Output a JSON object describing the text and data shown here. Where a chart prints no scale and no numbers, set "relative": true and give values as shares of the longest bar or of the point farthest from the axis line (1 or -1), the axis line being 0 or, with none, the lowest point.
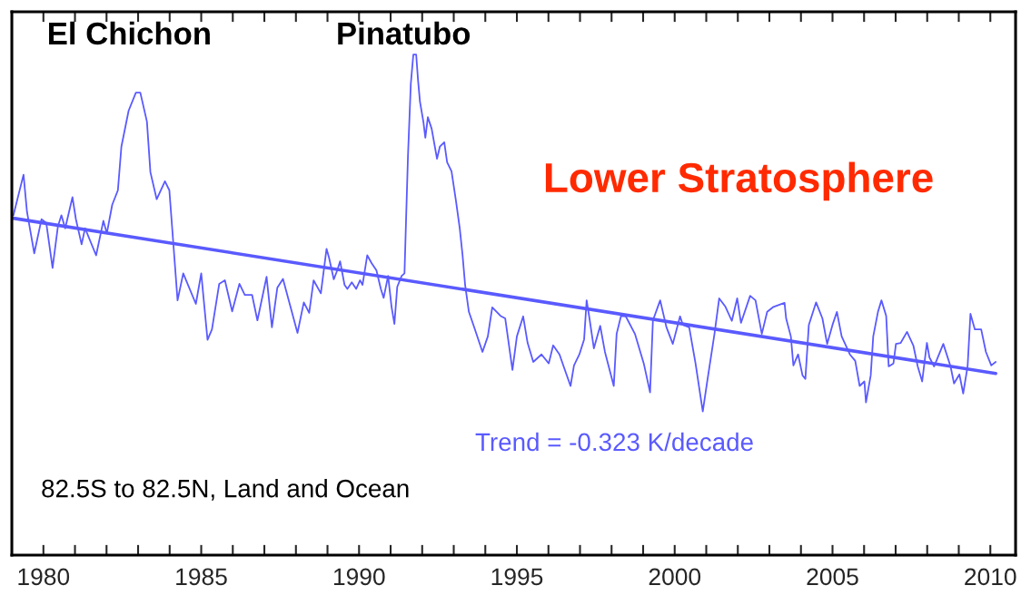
{
  "chart_data": {
    "type": "line",
    "title": "Lower Stratosphere",
    "relative": true,
    "tick_labels": "x",
    "line_style": "solid",
    "xlim": [
      1979,
      2010.8
    ],
    "xticks": [
      {
        "value": 1980,
        "label": "1980"
      },
      {
        "value": 1981,
        "label": null
      },
      {
        "value": 1982,
        "label": null
      },
      {
        "value": 1983,
        "label": null
      },
      {
        "value": 1984,
        "label": null
      },
      {
        "value": 1985,
        "label": "1985"
      },
      {
        "value": 1986,
        "label": null
      },
      {
        "value": 1987,
        "label": null
      },
      {
        "value": 1988,
        "label": null
      },
      {
        "value": 1989,
        "label": null
      },
      {
        "value": 1990,
        "label": "1990"
      },
      {
        "value": 1991,
        "label": null
      },
      {
        "value": 1992,
        "label": null
      },
      {
        "value": 1993,
        "label": null
      },
      {
        "value": 1994,
        "label": null
      },
      {
        "value": 1995,
        "label": "1995"
      },
      {
        "value": 1996,
        "label": null
      },
      {
        "value": 1997,
        "label": null
      },
      {
        "value": 1998,
        "label": null
      },
      {
        "value": 1999,
        "label": null
      },
      {
        "value": 2000,
        "label": "2000"
      },
      {
        "value": 2001,
        "label": null
      },
      {
        "value": 2002,
        "label": null
      },
      {
        "value": 2003,
        "label": null
      },
      {
        "value": 2004,
        "label": null
      },
      {
        "value": 2005,
        "label": "2005"
      },
      {
        "value": 2006,
        "label": null
      },
      {
        "value": 2007,
        "label": null
      },
      {
        "value": 2008,
        "label": null
      },
      {
        "value": 2009,
        "label": null
      },
      {
        "value": 2010,
        "label": "2010"
      }
    ],
    "series": [
      {
        "color": "#5a5aff",
        "x": [
          1979.05,
          1979.37,
          1979.48,
          1979.71,
          1979.94,
          1980.09,
          1980.29,
          1980.46,
          1980.57,
          1980.69,
          1980.92,
          1981.03,
          1981.21,
          1981.32,
          1981.67,
          1981.9,
          1982.01,
          1982.18,
          1982.36,
          1982.47,
          1982.7,
          1982.93,
          1983.07,
          1983.28,
          1983.39,
          1983.59,
          1983.85,
          1983.99,
          1984.11,
          1984.25,
          1984.43,
          1984.83,
          1985.0,
          1985.2,
          1985.34,
          1985.57,
          1985.75,
          1985.98,
          1986.21,
          1986.38,
          1986.61,
          1986.78,
          1987.07,
          1987.24,
          1987.41,
          1987.59,
          1987.82,
          1988.05,
          1988.25,
          1988.42,
          1988.56,
          1988.79,
          1988.97,
          1989.05,
          1989.2,
          1989.31,
          1989.4,
          1989.54,
          1989.63,
          1989.77,
          1989.91,
          1990.03,
          1990.11,
          1990.26,
          1990.4,
          1990.55,
          1990.69,
          1990.78,
          1990.92,
          1991.03,
          1991.12,
          1991.21,
          1991.35,
          1991.44,
          1991.49,
          1991.55,
          1991.64,
          1991.72,
          1991.81,
          1991.87,
          1991.93,
          1992.04,
          1992.1,
          1992.18,
          1992.3,
          1992.47,
          1992.56,
          1992.7,
          1992.79,
          1992.93,
          1993.07,
          1993.19,
          1993.28,
          1993.36,
          1993.48,
          1993.65,
          1993.91,
          1994.08,
          1994.22,
          1994.48,
          1994.63,
          1994.86,
          1995.0,
          1995.2,
          1995.34,
          1995.52,
          1995.78,
          1996.01,
          1996.15,
          1996.35,
          1996.52,
          1996.7,
          1996.81,
          1996.98,
          1997.13,
          1997.21,
          1997.3,
          1997.44,
          1997.64,
          1997.79,
          1998.07,
          1998.16,
          1998.3,
          1998.45,
          1998.74,
          1999.02,
          1999.22,
          1999.31,
          1999.54,
          1999.74,
          1999.94,
          2000.17,
          2000.26,
          2000.46,
          2000.66,
          2000.89,
          2001.03,
          2001.26,
          2001.41,
          2001.61,
          2001.81,
          2001.98,
          2002.1,
          2002.39,
          2002.56,
          2002.76,
          2002.93,
          2003.13,
          2003.48,
          2003.53,
          2003.68,
          2003.76,
          2003.91,
          2004.05,
          2004.14,
          2004.25,
          2004.48,
          2004.68,
          2004.83,
          2005.0,
          2005.14,
          2005.29,
          2005.55,
          2005.72,
          2005.86,
          2006.01,
          2006.06,
          2006.21,
          2006.29,
          2006.44,
          2006.55,
          2006.7,
          2006.78,
          2006.93,
          2007.01,
          2007.16,
          2007.36,
          2007.56,
          2007.7,
          2007.84,
          2007.99,
          2008.07,
          2008.22,
          2008.51,
          2008.74,
          2008.85,
          2009.02,
          2009.14,
          2009.28,
          2009.37,
          2009.51,
          2009.71,
          2009.86,
          2010.03,
          2010.17
        ],
        "values": [
          0.679,
          0.76,
          0.686,
          0.603,
          0.671,
          0.664,
          0.574,
          0.657,
          0.679,
          0.653,
          0.715,
          0.671,
          0.621,
          0.653,
          0.599,
          0.668,
          0.643,
          0.7,
          0.729,
          0.816,
          0.888,
          0.924,
          0.924,
          0.866,
          0.765,
          0.711,
          0.747,
          0.729,
          0.628,
          0.509,
          0.563,
          0.502,
          0.563,
          0.43,
          0.451,
          0.542,
          0.549,
          0.487,
          0.542,
          0.52,
          0.52,
          0.469,
          0.556,
          0.455,
          0.534,
          0.552,
          0.498,
          0.444,
          0.505,
          0.484,
          0.549,
          0.523,
          0.612,
          0.594,
          0.551,
          0.569,
          0.587,
          0.54,
          0.532,
          0.545,
          0.532,
          0.549,
          0.54,
          0.599,
          0.583,
          0.569,
          0.532,
          0.514,
          0.558,
          0.496,
          0.462,
          0.536,
          0.558,
          0.563,
          0.671,
          0.798,
          0.942,
          1.0,
          1.0,
          0.948,
          0.906,
          0.865,
          0.834,
          0.875,
          0.852,
          0.792,
          0.816,
          0.825,
          0.785,
          0.767,
          0.708,
          0.653,
          0.599,
          0.54,
          0.486,
          0.455,
          0.406,
          0.437,
          0.495,
          0.478,
          0.473,
          0.37,
          0.437,
          0.477,
          0.424,
          0.386,
          0.401,
          0.383,
          0.419,
          0.401,
          0.37,
          0.338,
          0.379,
          0.401,
          0.431,
          0.509,
          0.473,
          0.413,
          0.458,
          0.406,
          0.338,
          0.442,
          0.478,
          0.477,
          0.442,
          0.383,
          0.325,
          0.469,
          0.509,
          0.455,
          0.422,
          0.477,
          0.46,
          0.455,
          0.383,
          0.287,
          0.347,
          0.442,
          0.513,
          0.496,
          0.468,
          0.513,
          0.464,
          0.518,
          0.509,
          0.442,
          0.486,
          0.496,
          0.504,
          0.473,
          0.437,
          0.379,
          0.401,
          0.359,
          0.352,
          0.46,
          0.505,
          0.473,
          0.422,
          0.46,
          0.486,
          0.437,
          0.401,
          0.388,
          0.338,
          0.347,
          0.305,
          0.359,
          0.437,
          0.486,
          0.509,
          0.478,
          0.377,
          0.383,
          0.422,
          0.424,
          0.446,
          0.419,
          0.377,
          0.347,
          0.424,
          0.395,
          0.377,
          0.422,
          0.377,
          0.343,
          0.361,
          0.323,
          0.377,
          0.482,
          0.451,
          0.451,
          0.406,
          0.379,
          0.386
        ]
      },
      {
        "color": "#5a5aff",
        "x": [
          1979.05,
          2010.17
        ],
        "values": [
          0.673,
          0.363
        ]
      }
    ],
    "annotations": [
      "El Chichon",
      "Pinatubo",
      "Trend = -0.323 K/decade",
      "82.5S to 82.5N, Land and Ocean"
    ]
  }
}
